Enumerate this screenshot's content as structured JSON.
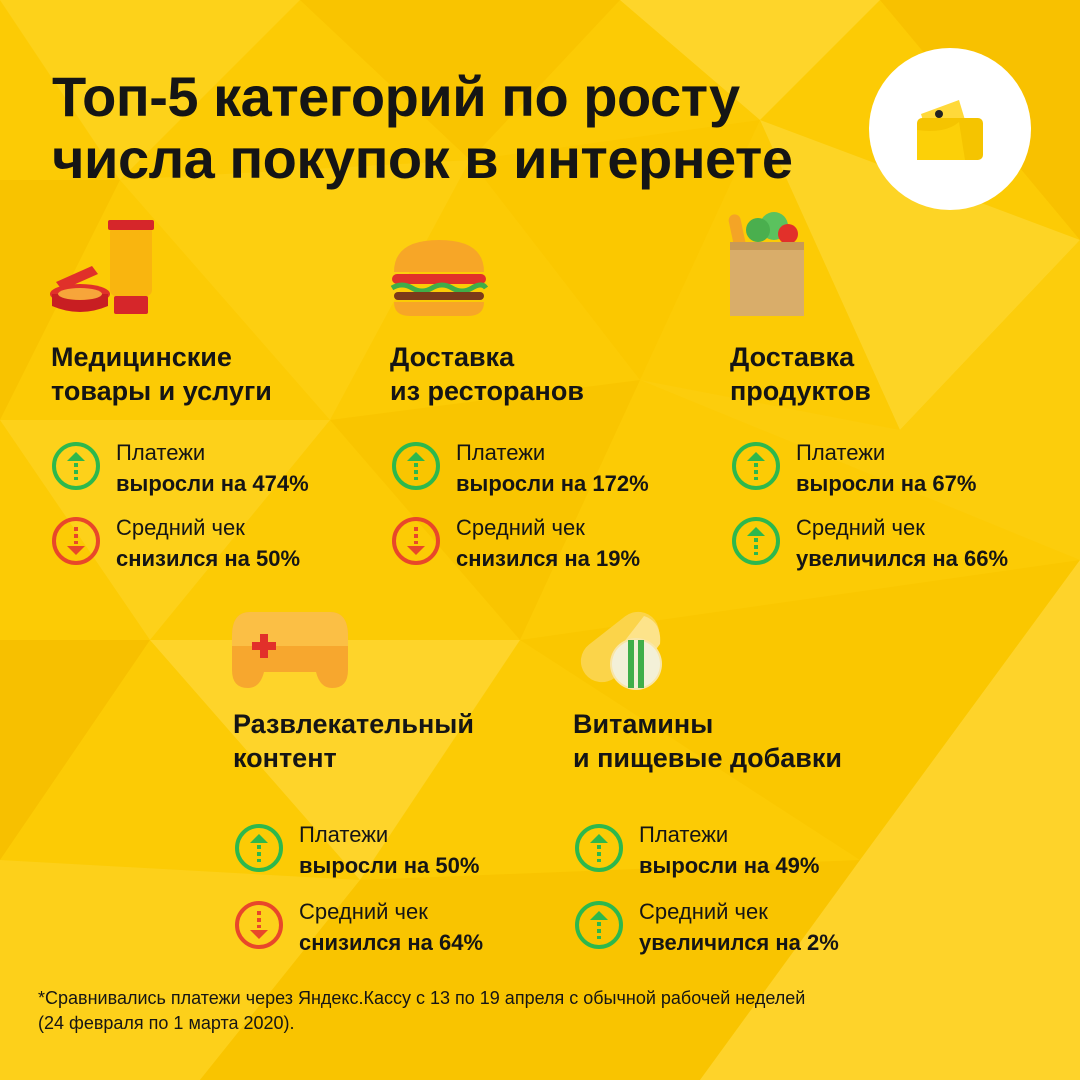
{
  "title": {
    "line1": "Топ-5 категорий по росту",
    "line2": "числа покупок в интернете"
  },
  "logo": {
    "icon": "wallet-icon"
  },
  "colors": {
    "background": "#fccb05",
    "up": "#2db84d",
    "down": "#e8472a",
    "text": "#151515"
  },
  "categories": [
    {
      "icon": "medical-icon",
      "title_line1": "Медицинские",
      "title_line2": "товары и услуги",
      "payments": {
        "label": "Платежи",
        "value": "выросли на 474%",
        "trend": "up"
      },
      "avg_check": {
        "label": "Средний чек",
        "value": "снизился на 50%",
        "trend": "down"
      }
    },
    {
      "icon": "burger-icon",
      "title_line1": "Доставка",
      "title_line2": "из ресторанов",
      "payments": {
        "label": "Платежи",
        "value": "выросли на 172%",
        "trend": "up"
      },
      "avg_check": {
        "label": "Средний чек",
        "value": "снизился на 19%",
        "trend": "down"
      }
    },
    {
      "icon": "grocery-bag-icon",
      "title_line1": "Доставка",
      "title_line2": "продуктов",
      "payments": {
        "label": "Платежи",
        "value": "выросли на 67%",
        "trend": "up"
      },
      "avg_check": {
        "label": "Средний чек",
        "value": "увеличился на 66%",
        "trend": "up"
      }
    },
    {
      "icon": "gamepad-icon",
      "title_line1": "Развлекательный",
      "title_line2": "контент",
      "payments": {
        "label": "Платежи",
        "value": "выросли на 50%",
        "trend": "up"
      },
      "avg_check": {
        "label": "Средний чек",
        "value": "снизился на 64%",
        "trend": "down"
      }
    },
    {
      "icon": "pills-icon",
      "title_line1": "Витамины",
      "title_line2": "и пищевые добавки",
      "payments": {
        "label": "Платежи",
        "value": "выросли на 49%",
        "trend": "up"
      },
      "avg_check": {
        "label": "Средний чек",
        "value": "увеличился на 2%",
        "trend": "up"
      }
    }
  ],
  "footnote": {
    "line1": "*Сравнивались платежи через Яндекс.Кассу с 13 по 19 апреля с обычной рабочей неделей",
    "line2": "(24 февраля по 1 марта 2020)."
  }
}
